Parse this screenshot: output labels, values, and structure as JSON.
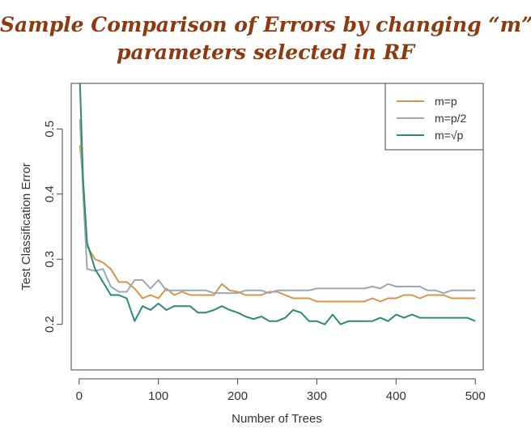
{
  "title_line1": "Sample Comparison of Errors by changing “m”",
  "title_line2": "parameters selected in RF",
  "chart_data": {
    "type": "line",
    "xlabel": "Number of Trees",
    "ylabel": "Test Classification Error",
    "xlim": [
      -10,
      510
    ],
    "ylim": [
      0.13,
      0.57
    ],
    "xticks": [
      0,
      100,
      200,
      300,
      400,
      500
    ],
    "yticks": [
      0.2,
      0.3,
      0.4,
      0.5
    ],
    "xtick_labels": [
      "0",
      "100",
      "200",
      "300",
      "400",
      "500"
    ],
    "ytick_labels": [
      "0.2",
      "0.3",
      "0.4",
      "0.5"
    ],
    "grid": false,
    "legend_position": "top-right",
    "series": [
      {
        "name": "m=p",
        "color": "#d4954b",
        "x": [
          1,
          5,
          10,
          20,
          30,
          40,
          50,
          60,
          70,
          80,
          90,
          100,
          110,
          120,
          130,
          140,
          150,
          160,
          170,
          180,
          190,
          200,
          210,
          220,
          230,
          240,
          250,
          260,
          270,
          280,
          290,
          300,
          310,
          320,
          330,
          340,
          350,
          360,
          370,
          380,
          390,
          400,
          410,
          420,
          430,
          440,
          450,
          460,
          470,
          480,
          490,
          500
        ],
        "y": [
          0.475,
          0.42,
          0.32,
          0.3,
          0.295,
          0.285,
          0.265,
          0.265,
          0.255,
          0.24,
          0.245,
          0.24,
          0.255,
          0.245,
          0.25,
          0.245,
          0.245,
          0.245,
          0.245,
          0.262,
          0.252,
          0.25,
          0.245,
          0.245,
          0.245,
          0.25,
          0.25,
          0.245,
          0.24,
          0.24,
          0.24,
          0.235,
          0.235,
          0.235,
          0.235,
          0.235,
          0.235,
          0.235,
          0.24,
          0.235,
          0.24,
          0.24,
          0.245,
          0.245,
          0.24,
          0.245,
          0.245,
          0.245,
          0.24,
          0.24,
          0.24,
          0.24
        ]
      },
      {
        "name": "m=p/2",
        "color": "#9aa8b5",
        "x": [
          1,
          5,
          10,
          20,
          30,
          40,
          50,
          60,
          70,
          80,
          90,
          100,
          110,
          120,
          130,
          140,
          150,
          160,
          170,
          180,
          190,
          200,
          210,
          220,
          230,
          240,
          250,
          260,
          270,
          280,
          290,
          300,
          310,
          320,
          330,
          340,
          350,
          360,
          370,
          380,
          390,
          400,
          410,
          420,
          430,
          440,
          450,
          460,
          470,
          480,
          490,
          500
        ],
        "y": [
          0.515,
          0.4,
          0.285,
          0.282,
          0.285,
          0.258,
          0.25,
          0.25,
          0.268,
          0.268,
          0.255,
          0.268,
          0.252,
          0.252,
          0.252,
          0.252,
          0.252,
          0.252,
          0.248,
          0.248,
          0.248,
          0.248,
          0.252,
          0.252,
          0.252,
          0.248,
          0.252,
          0.252,
          0.252,
          0.252,
          0.252,
          0.255,
          0.255,
          0.255,
          0.255,
          0.255,
          0.255,
          0.255,
          0.258,
          0.255,
          0.262,
          0.258,
          0.258,
          0.258,
          0.258,
          0.252,
          0.252,
          0.248,
          0.252,
          0.252,
          0.252,
          0.252
        ]
      },
      {
        "name": "m=√p",
        "color": "#2e8b72",
        "x": [
          1,
          5,
          10,
          20,
          30,
          40,
          50,
          60,
          70,
          80,
          90,
          100,
          110,
          120,
          130,
          140,
          150,
          160,
          170,
          180,
          190,
          200,
          210,
          220,
          230,
          240,
          250,
          260,
          270,
          280,
          290,
          300,
          310,
          320,
          330,
          340,
          350,
          360,
          370,
          380,
          390,
          400,
          410,
          420,
          430,
          440,
          450,
          460,
          470,
          480,
          490,
          500
        ],
        "y": [
          0.57,
          0.42,
          0.325,
          0.285,
          0.265,
          0.245,
          0.245,
          0.24,
          0.205,
          0.228,
          0.222,
          0.232,
          0.222,
          0.228,
          0.228,
          0.228,
          0.218,
          0.218,
          0.222,
          0.228,
          0.222,
          0.218,
          0.212,
          0.208,
          0.212,
          0.205,
          0.205,
          0.21,
          0.222,
          0.218,
          0.205,
          0.205,
          0.2,
          0.215,
          0.2,
          0.205,
          0.205,
          0.205,
          0.205,
          0.21,
          0.205,
          0.215,
          0.21,
          0.215,
          0.21,
          0.21,
          0.21,
          0.21,
          0.21,
          0.21,
          0.21,
          0.205
        ]
      }
    ]
  }
}
